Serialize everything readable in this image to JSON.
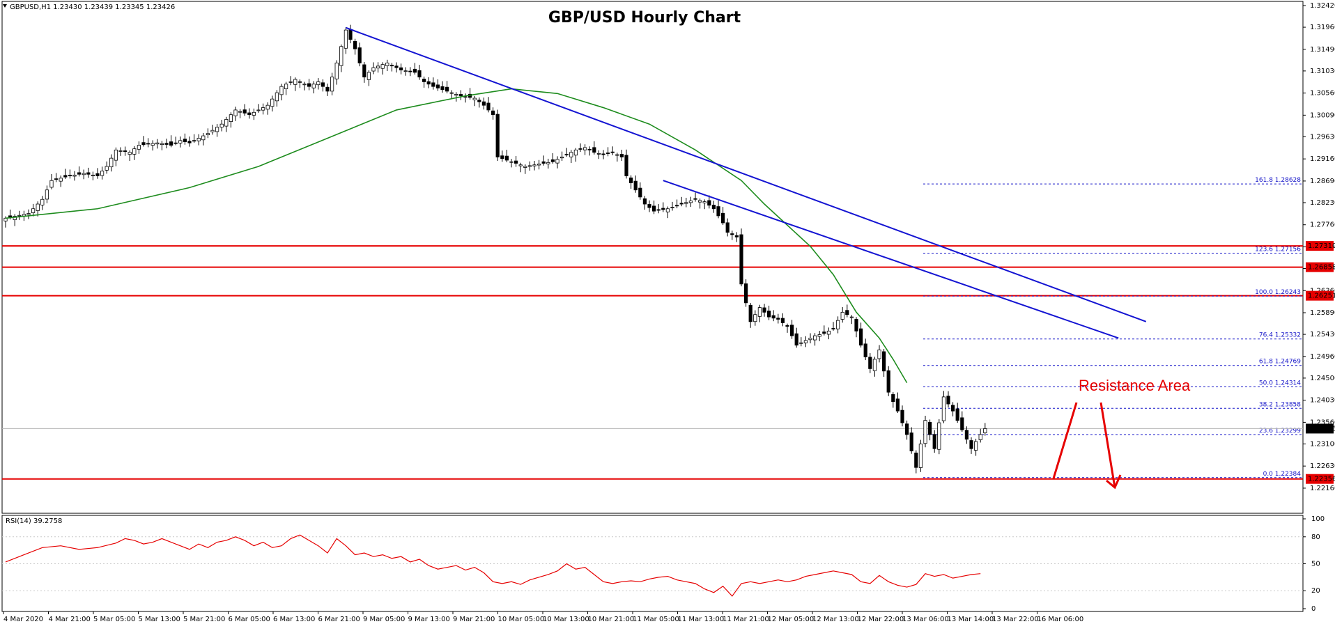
{
  "header": {
    "symbol_line": "GBPUSD,H1  1.23430 1.23439 1.23345 1.23426",
    "title": "GBP/USD Hourly Chart"
  },
  "annotation": {
    "text": "Resistance Area",
    "color": "#e60000"
  },
  "colors": {
    "bull_candle": "#ffffff",
    "bear_candle": "#000000",
    "moving_average": "#1e8c1e",
    "trend_lines": "#1414d2",
    "horizontal_levels": "#e60000",
    "fib_levels": "#1414c8",
    "rsi_line": "#e60000",
    "price_tag_bg": "#e60000"
  },
  "chart_data": [
    {
      "type": "candlestick",
      "title": "GBP/USD Hourly Chart",
      "instrument": "GBPUSD",
      "timeframe": "H1",
      "last_bar": {
        "open": 1.2343,
        "high": 1.23439,
        "low": 1.23345,
        "close": 1.23426
      },
      "ylim": [
        1.217,
        1.3242
      ],
      "y_ticks": [
        "1.32420",
        "1.31960",
        "1.31490",
        "1.31030",
        "1.30560",
        "1.30090",
        "1.29630",
        "1.29160",
        "1.28690",
        "1.28230",
        "1.27760",
        "1.27290",
        "1.26830",
        "1.26360",
        "1.25890",
        "1.25430",
        "1.24960",
        "1.24500",
        "1.24030",
        "1.23560",
        "1.23100",
        "1.22630",
        "1.22160"
      ],
      "x_tick_labels": [
        "4 Mar 2020",
        "4 Mar 21:00",
        "5 Mar 05:00",
        "5 Mar 13:00",
        "5 Mar 21:00",
        "6 Mar 05:00",
        "6 Mar 13:00",
        "6 Mar 21:00",
        "9 Mar 05:00",
        "9 Mar 13:00",
        "9 Mar 21:00",
        "10 Mar 05:00",
        "10 Mar 13:00",
        "10 Mar 21:00",
        "11 Mar 05:00",
        "11 Mar 13:00",
        "11 Mar 21:00",
        "12 Mar 05:00",
        "12 Mar 13:00",
        "12 Mar 22:00",
        "13 Mar 06:00",
        "13 Mar 14:00",
        "13 Mar 22:00",
        "16 Mar 06:00"
      ],
      "close_path": [
        [
          0,
          1.279
        ],
        [
          5,
          1.28
        ],
        [
          8,
          1.283
        ],
        [
          10,
          1.287
        ],
        [
          14,
          1.288
        ],
        [
          17,
          1.2885
        ],
        [
          20,
          1.288
        ],
        [
          22,
          1.29
        ],
        [
          24,
          1.2935
        ],
        [
          27,
          1.293
        ],
        [
          29,
          1.2945
        ],
        [
          33,
          1.295
        ],
        [
          36,
          1.2945
        ],
        [
          38,
          1.2955
        ],
        [
          40,
          1.295
        ],
        [
          44,
          1.297
        ],
        [
          47,
          1.299
        ],
        [
          50,
          1.302
        ],
        [
          53,
          1.301
        ],
        [
          55,
          1.302
        ],
        [
          57,
          1.303
        ],
        [
          60,
          1.307
        ],
        [
          63,
          1.3085
        ],
        [
          66,
          1.307
        ],
        [
          68,
          1.308
        ],
        [
          70,
          1.306
        ],
        [
          72,
          1.312
        ],
        [
          74,
          1.319
        ],
        [
          76,
          1.315
        ],
        [
          78,
          1.309
        ],
        [
          80,
          1.311
        ],
        [
          83,
          1.312
        ],
        [
          86,
          1.3105
        ],
        [
          89,
          1.31
        ],
        [
          91,
          1.308
        ],
        [
          93,
          1.307
        ],
        [
          96,
          1.306
        ],
        [
          99,
          1.305
        ],
        [
          102,
          1.3045
        ],
        [
          104,
          1.303
        ],
        [
          106,
          1.301
        ],
        [
          107,
          1.292
        ],
        [
          110,
          1.291
        ],
        [
          113,
          1.29
        ],
        [
          116,
          1.2905
        ],
        [
          119,
          1.291
        ],
        [
          122,
          1.2925
        ],
        [
          124,
          1.2935
        ],
        [
          126,
          1.294
        ],
        [
          128,
          1.293
        ],
        [
          130,
          1.2925
        ],
        [
          132,
          1.293
        ],
        [
          134,
          1.292
        ],
        [
          135,
          1.288
        ],
        [
          137,
          1.285
        ],
        [
          139,
          1.282
        ],
        [
          141,
          1.2805
        ],
        [
          144,
          1.281
        ],
        [
          147,
          1.282
        ],
        [
          150,
          1.283
        ],
        [
          152,
          1.2825
        ],
        [
          154,
          1.281
        ],
        [
          156,
          1.278
        ],
        [
          157,
          1.276
        ],
        [
          158,
          1.2755
        ],
        [
          159,
          1.275
        ],
        [
          160,
          1.265
        ],
        [
          162,
          1.257
        ],
        [
          164,
          1.26
        ],
        [
          166,
          1.258
        ],
        [
          168,
          1.2575
        ],
        [
          170,
          1.256
        ],
        [
          172,
          1.252
        ],
        [
          174,
          1.253
        ],
        [
          176,
          1.254
        ],
        [
          178,
          1.2545
        ],
        [
          180,
          1.2555
        ],
        [
          182,
          1.259
        ],
        [
          184,
          1.258
        ],
        [
          186,
          1.252
        ],
        [
          188,
          1.247
        ],
        [
          190,
          1.251
        ],
        [
          192,
          1.242
        ],
        [
          194,
          1.238
        ],
        [
          196,
          1.233
        ],
        [
          198,
          1.226
        ],
        [
          200,
          1.236
        ],
        [
          202,
          1.23
        ],
        [
          204,
          1.241
        ],
        [
          206,
          1.238
        ],
        [
          208,
          1.234
        ],
        [
          210,
          1.23
        ],
        [
          212,
          1.233
        ],
        [
          213,
          1.23426
        ]
      ],
      "moving_average_path": [
        [
          0,
          1.279
        ],
        [
          20,
          1.281
        ],
        [
          40,
          1.2855
        ],
        [
          55,
          1.29
        ],
        [
          70,
          1.296
        ],
        [
          85,
          1.302
        ],
        [
          100,
          1.305
        ],
        [
          110,
          1.3065
        ],
        [
          120,
          1.3055
        ],
        [
          130,
          1.3025
        ],
        [
          140,
          1.299
        ],
        [
          150,
          1.2935
        ],
        [
          160,
          1.287
        ],
        [
          165,
          1.282
        ],
        [
          170,
          1.2775
        ],
        [
          175,
          1.273
        ],
        [
          180,
          1.267
        ],
        [
          185,
          1.259
        ],
        [
          190,
          1.2535
        ],
        [
          193,
          1.249
        ],
        [
          196,
          1.244
        ]
      ]
    },
    {
      "type": "line",
      "name": "RSI(14) 39.2758",
      "ylim": [
        0,
        100
      ],
      "y_ticks": [
        "100",
        "80",
        "50",
        "20",
        "0"
      ],
      "values": [
        [
          0,
          52
        ],
        [
          4,
          60
        ],
        [
          8,
          68
        ],
        [
          12,
          70
        ],
        [
          16,
          66
        ],
        [
          20,
          68
        ],
        [
          24,
          73
        ],
        [
          26,
          78
        ],
        [
          28,
          76
        ],
        [
          30,
          72
        ],
        [
          32,
          74
        ],
        [
          34,
          78
        ],
        [
          36,
          74
        ],
        [
          38,
          70
        ],
        [
          40,
          66
        ],
        [
          42,
          72
        ],
        [
          44,
          68
        ],
        [
          46,
          74
        ],
        [
          48,
          76
        ],
        [
          50,
          80
        ],
        [
          52,
          76
        ],
        [
          54,
          70
        ],
        [
          56,
          74
        ],
        [
          58,
          68
        ],
        [
          60,
          70
        ],
        [
          62,
          78
        ],
        [
          64,
          82
        ],
        [
          66,
          76
        ],
        [
          68,
          70
        ],
        [
          70,
          62
        ],
        [
          72,
          78
        ],
        [
          74,
          70
        ],
        [
          76,
          60
        ],
        [
          78,
          62
        ],
        [
          80,
          58
        ],
        [
          82,
          60
        ],
        [
          84,
          56
        ],
        [
          86,
          58
        ],
        [
          88,
          52
        ],
        [
          90,
          55
        ],
        [
          92,
          48
        ],
        [
          94,
          44
        ],
        [
          96,
          46
        ],
        [
          98,
          48
        ],
        [
          100,
          43
        ],
        [
          102,
          46
        ],
        [
          104,
          40
        ],
        [
          106,
          30
        ],
        [
          108,
          28
        ],
        [
          110,
          30
        ],
        [
          112,
          27
        ],
        [
          114,
          32
        ],
        [
          116,
          35
        ],
        [
          118,
          38
        ],
        [
          120,
          42
        ],
        [
          122,
          50
        ],
        [
          124,
          44
        ],
        [
          126,
          46
        ],
        [
          128,
          38
        ],
        [
          130,
          30
        ],
        [
          132,
          28
        ],
        [
          134,
          30
        ],
        [
          136,
          31
        ],
        [
          138,
          30
        ],
        [
          140,
          33
        ],
        [
          142,
          35
        ],
        [
          144,
          36
        ],
        [
          146,
          32
        ],
        [
          148,
          30
        ],
        [
          150,
          28
        ],
        [
          152,
          22
        ],
        [
          154,
          18
        ],
        [
          156,
          25
        ],
        [
          158,
          14
        ],
        [
          160,
          28
        ],
        [
          162,
          30
        ],
        [
          164,
          28
        ],
        [
          166,
          30
        ],
        [
          168,
          32
        ],
        [
          170,
          30
        ],
        [
          172,
          32
        ],
        [
          174,
          36
        ],
        [
          176,
          38
        ],
        [
          178,
          40
        ],
        [
          180,
          42
        ],
        [
          182,
          40
        ],
        [
          184,
          38
        ],
        [
          186,
          30
        ],
        [
          188,
          28
        ],
        [
          190,
          37
        ],
        [
          192,
          30
        ],
        [
          194,
          26
        ],
        [
          196,
          24
        ],
        [
          198,
          27
        ],
        [
          200,
          39
        ],
        [
          202,
          36
        ],
        [
          204,
          38
        ],
        [
          206,
          34
        ],
        [
          208,
          36
        ],
        [
          210,
          38
        ],
        [
          212,
          39
        ]
      ]
    }
  ],
  "horizontal_levels": [
    {
      "value": 1.2731,
      "label": "1.27310"
    },
    {
      "value": 1.26858,
      "label": "1.26858"
    },
    {
      "value": 1.26251,
      "label": "1.26251"
    },
    {
      "value": 1.22356,
      "label": "1.22356"
    }
  ],
  "current_price": {
    "value": 1.23426,
    "label": "1.23426"
  },
  "fibonacci_levels": [
    {
      "value": 1.28628,
      "label": "161.8 1.28628"
    },
    {
      "value": 1.27156,
      "label": "123.6 1.27156"
    },
    {
      "value": 1.26243,
      "label": "100.0 1.26243"
    },
    {
      "value": 1.25332,
      "label": "76.4 1.25332"
    },
    {
      "value": 1.24769,
      "label": "61.8 1.24769"
    },
    {
      "value": 1.24314,
      "label": "50.0 1.24314"
    },
    {
      "value": 1.23858,
      "label": "38.2 1.23858"
    },
    {
      "value": 1.23299,
      "label": "23.6 1.23299"
    },
    {
      "value": 1.22384,
      "label": "0.0 1.22384"
    }
  ],
  "trend_lines": [
    {
      "name": "upper",
      "from": [
        74,
        1.3195
      ],
      "to": [
        248,
        1.257
      ]
    },
    {
      "name": "lower",
      "from": [
        143,
        1.287
      ],
      "to": [
        242,
        1.2535
      ]
    }
  ]
}
